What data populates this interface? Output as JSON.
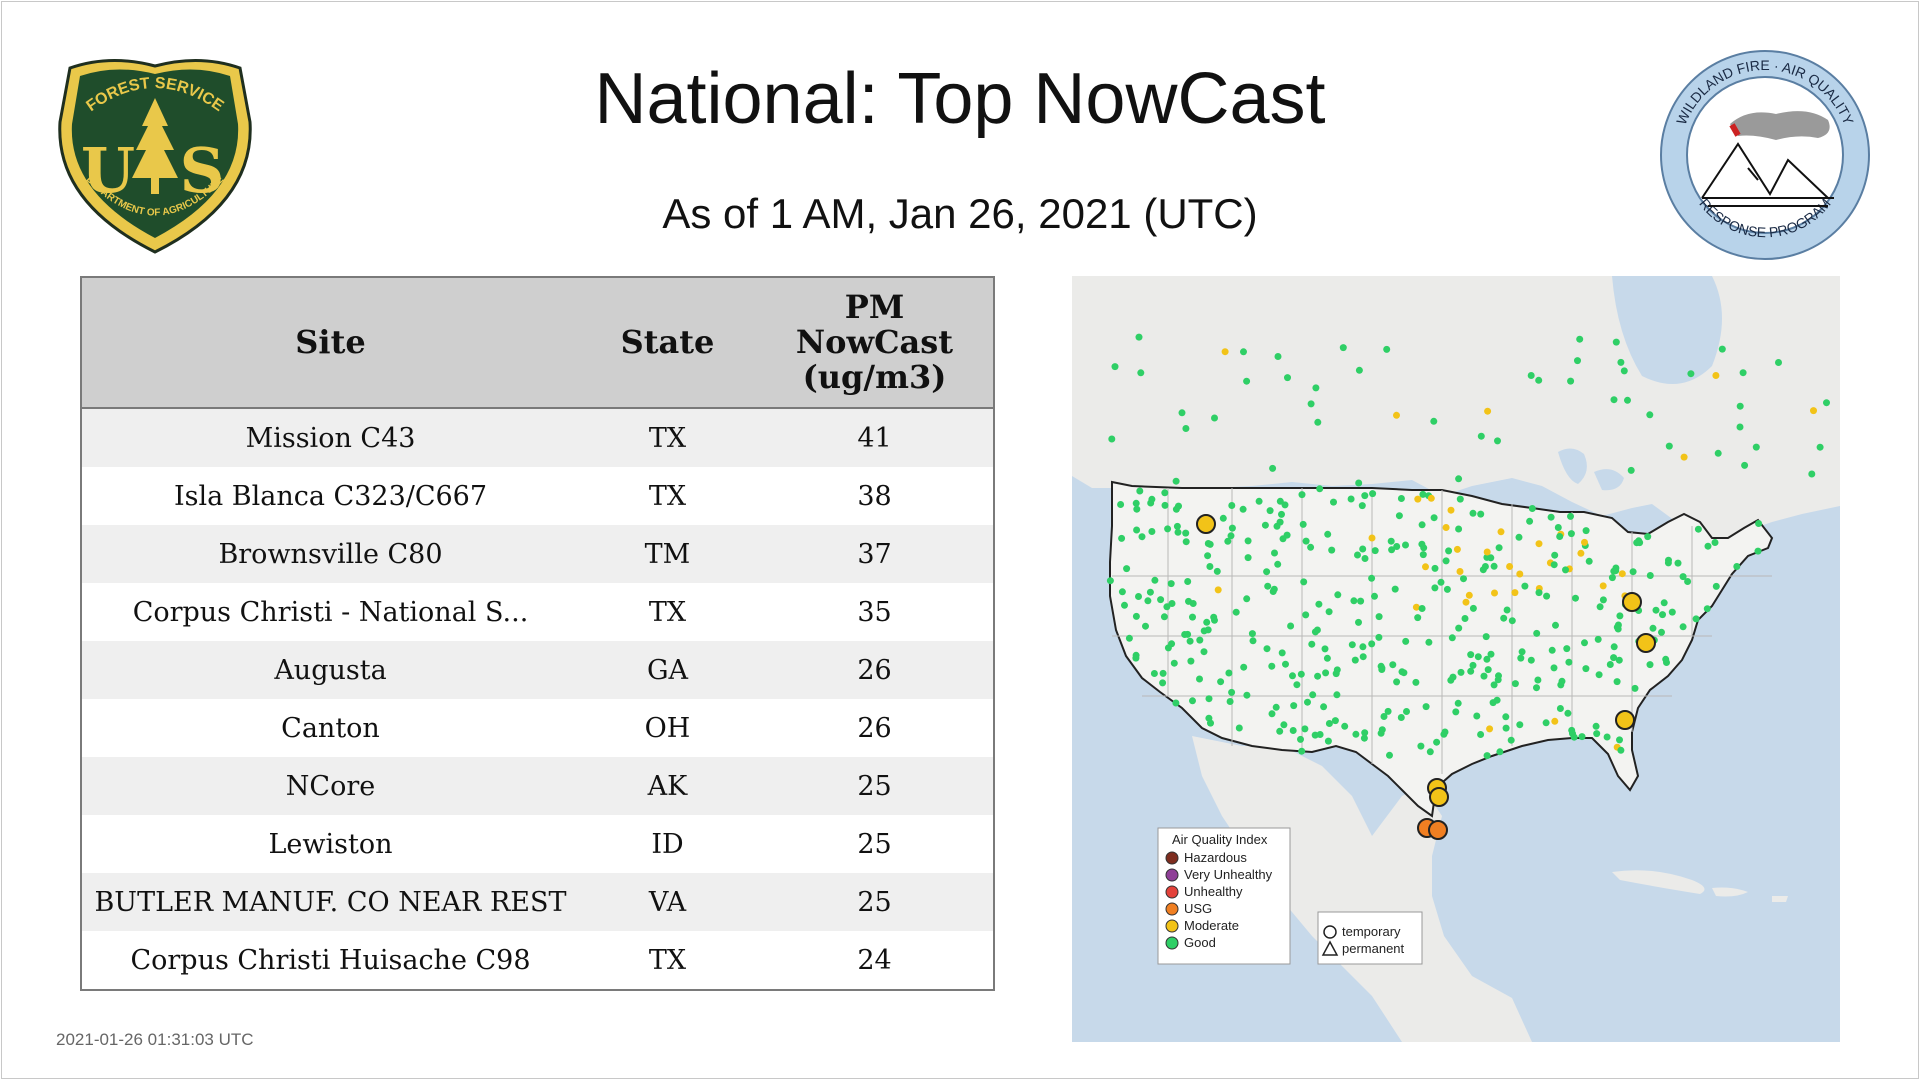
{
  "header": {
    "title": "National: Top NowCast",
    "subtitle": "As of  1 AM, Jan 26, 2021 (UTC)"
  },
  "logos": {
    "usfs": {
      "top_text": "FOREST SERVICE",
      "bottom_text": "DEPARTMENT OF AGRICULTURE",
      "letters": "U S",
      "color_green": "#1f4d2b",
      "color_gold": "#e9c84a"
    },
    "wfaq": {
      "top_text": "WILDLAND FIRE · AIR QUALITY",
      "bottom_text": "RESPONSE PROGRAM",
      "ring_color": "#b8d3ea"
    }
  },
  "table": {
    "headers": {
      "site": "Site",
      "state": "State",
      "pm_line1": "PM",
      "pm_line2": "NowCast",
      "pm_line3": "(ug/m3)"
    },
    "rows": [
      {
        "site": "Mission C43",
        "state": "TX",
        "value": "41"
      },
      {
        "site": "Isla Blanca C323/C667",
        "state": "TX",
        "value": "38"
      },
      {
        "site": "Brownsville C80",
        "state": "TM",
        "value": "37"
      },
      {
        "site": "Corpus Christi - National S...",
        "state": "TX",
        "value": "35"
      },
      {
        "site": "Augusta",
        "state": "GA",
        "value": "26"
      },
      {
        "site": "Canton",
        "state": "OH",
        "value": "26"
      },
      {
        "site": "NCore",
        "state": "AK",
        "value": "25"
      },
      {
        "site": "Lewiston",
        "state": "ID",
        "value": "25"
      },
      {
        "site": "BUTLER MANUF. CO NEAR REST",
        "state": "VA",
        "value": "25"
      },
      {
        "site": "Corpus Christi Huisache C98",
        "state": "TX",
        "value": "24"
      }
    ]
  },
  "map": {
    "legend_aqi": {
      "title": "Air Quality Index",
      "items": [
        {
          "label": "Hazardous",
          "color": "#7e2d1f"
        },
        {
          "label": "Very Unhealthy",
          "color": "#8f3f97"
        },
        {
          "label": "Unhealthy",
          "color": "#e3423a"
        },
        {
          "label": "USG",
          "color": "#f07f22"
        },
        {
          "label": "Moderate",
          "color": "#f2c318"
        },
        {
          "label": "Good",
          "color": "#2fcf66"
        }
      ]
    },
    "legend_type": {
      "items": [
        {
          "label": "temporary",
          "shape": "circle"
        },
        {
          "label": "permanent",
          "shape": "triangle"
        }
      ]
    },
    "colors": {
      "water": "#c7d9ea",
      "land": "#eeeeec",
      "us_land": "#f2f2f0",
      "border": "#222222",
      "state_line": "#b6b6b6"
    }
  },
  "footer": {
    "timestamp": "2021-01-26 01:31:03 UTC"
  }
}
